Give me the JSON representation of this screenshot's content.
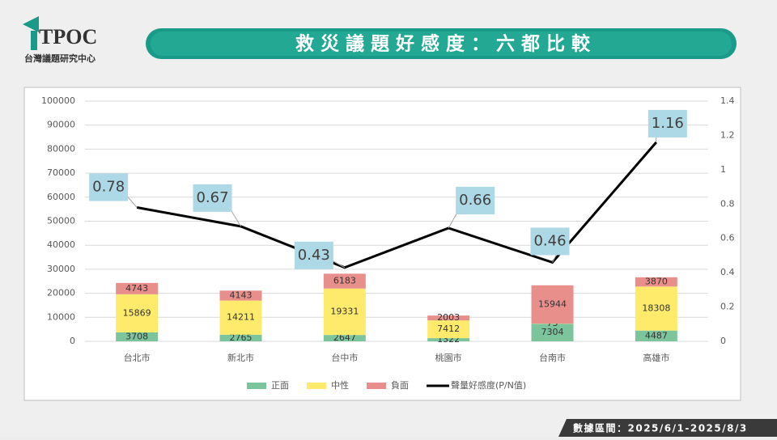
{
  "logo": {
    "mark": "TPOC",
    "subtitle": "台灣議題研究中心"
  },
  "title": "救 災 議 題 好 感 度 ： 六 都 比 較",
  "footer": "數據區間：2025/6/1-2025/8/3",
  "chart_data": {
    "type": "stacked-bar-line",
    "categories": [
      "台北市",
      "新北市",
      "台中市",
      "桃園市",
      "台南市",
      "高雄市"
    ],
    "series": [
      {
        "name": "正面",
        "color": "#7cc49c",
        "values": [
          3708,
          2765,
          2647,
          1322,
          7304,
          4487
        ]
      },
      {
        "name": "中性",
        "color": "#ffeb6b",
        "values": [
          15869,
          14211,
          19331,
          7412,
          73,
          18308
        ]
      },
      {
        "name": "負面",
        "color": "#e88f8c",
        "values": [
          4743,
          4143,
          6183,
          2003,
          15944,
          3870
        ]
      },
      {
        "name": "聲量好感度(P/N值)",
        "color": "#000000",
        "axis": "y2",
        "values": [
          0.78,
          0.67,
          0.43,
          0.66,
          0.46,
          1.16
        ]
      }
    ],
    "ylim": [
      0,
      100000
    ],
    "yticks": [
      0,
      10000,
      20000,
      30000,
      40000,
      50000,
      60000,
      70000,
      80000,
      90000,
      100000
    ],
    "y2lim": [
      0,
      1.4
    ],
    "y2ticks": [
      0,
      0.2,
      0.4,
      0.6,
      0.8,
      1,
      1.2,
      1.4
    ],
    "grid": true,
    "legend": "bottom"
  }
}
